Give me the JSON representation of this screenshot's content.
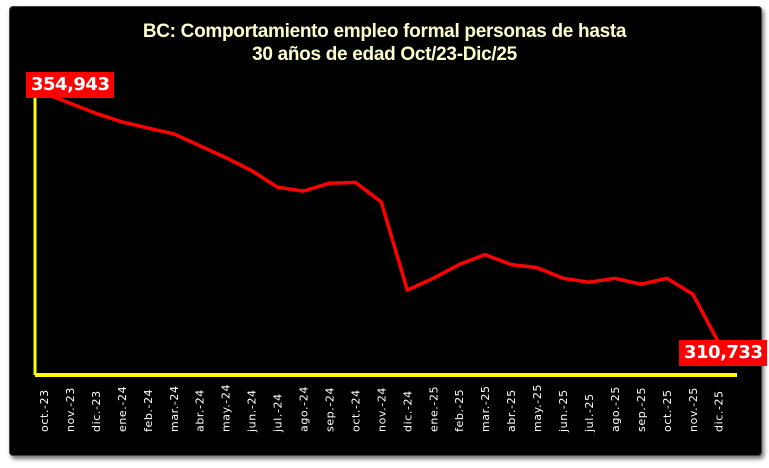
{
  "chart_data": {
    "type": "line",
    "title_line1": "BC: Comportamiento empleo formal personas de hasta",
    "title_line2": "30 años de edad Oct/23-Dic/25",
    "categories": [
      "oct.-23",
      "nov.-23",
      "dic.-23",
      "ene.-24",
      "feb.-24",
      "mar.-24",
      "abr.-24",
      "may.-24",
      "jun.-24",
      "jul.-24",
      "ago.-24",
      "sep.-24",
      "oct.-24",
      "nov.-24",
      "dic.-24",
      "ene.-25",
      "feb.-25",
      "mar.-25",
      "abr.-25",
      "may.-25",
      "jun.-25",
      "jul.-25",
      "ago.-25",
      "sep.-25",
      "oct.-25",
      "nov.-25",
      "dic.-25"
    ],
    "values": [
      354943,
      353200,
      351400,
      349900,
      348800,
      347750,
      345650,
      343550,
      341250,
      338300,
      337600,
      339000,
      339150,
      335650,
      320050,
      322150,
      324600,
      326350,
      324600,
      324050,
      322150,
      321450,
      322150,
      321100,
      322150,
      319350,
      310733
    ],
    "data_labels": {
      "first": "354,943",
      "last": "310,733"
    },
    "ylim": [
      305000,
      355000
    ],
    "grid": false,
    "legend": "none",
    "colors": {
      "line": "#ff0000",
      "axes": "#ffff00",
      "background": "#000000",
      "title": "#ffffcc",
      "label_bg": "#ff0000"
    }
  }
}
